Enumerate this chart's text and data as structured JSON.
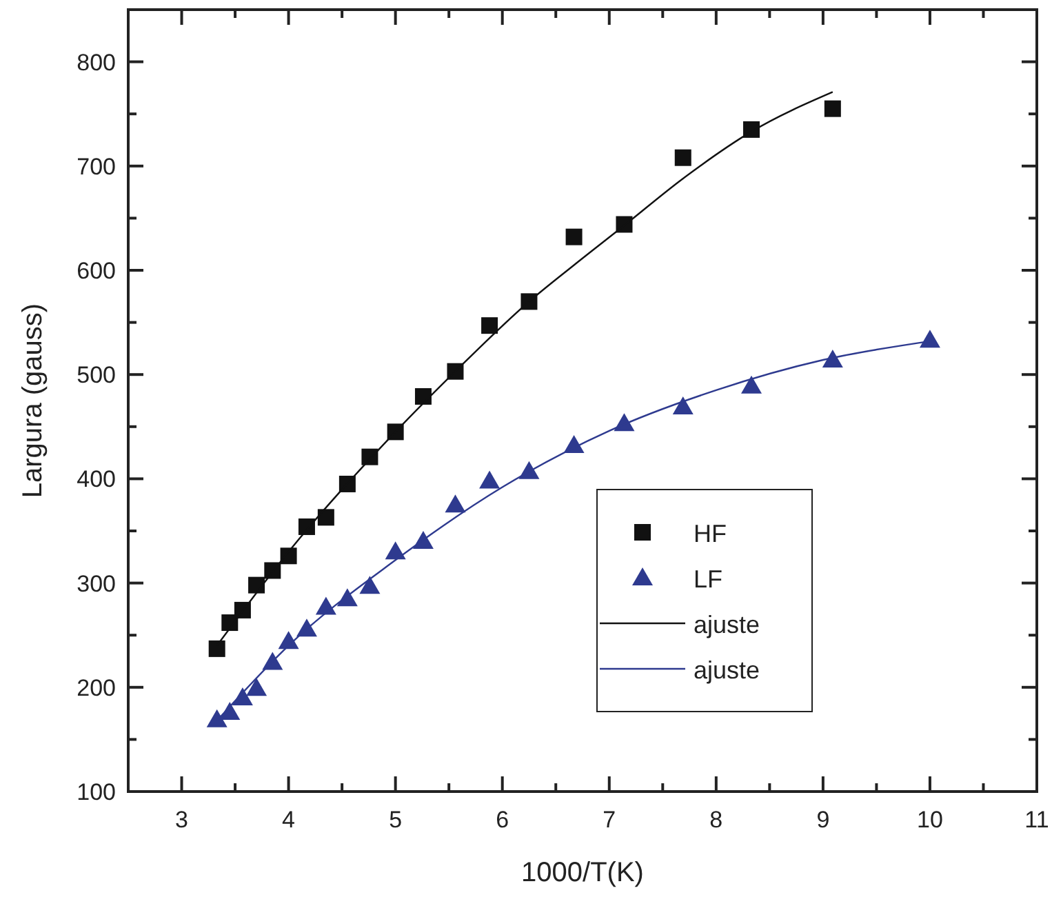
{
  "chart_data": {
    "type": "scatter",
    "xlabel": "1000/T(K)",
    "ylabel": "Largura (gauss)",
    "xlim": [
      2.5,
      11
    ],
    "ylim": [
      100,
      850
    ],
    "xticks": [
      {
        "value": 2.5,
        "label": null
      },
      3,
      {
        "value": 3.5,
        "label": null
      },
      4,
      {
        "value": 4.5,
        "label": null
      },
      5,
      {
        "value": 5.5,
        "label": null
      },
      6,
      {
        "value": 6.5,
        "label": null
      },
      7,
      {
        "value": 7.5,
        "label": null
      },
      8,
      {
        "value": 8.5,
        "label": null
      },
      9,
      {
        "value": 9.5,
        "label": null
      },
      10,
      {
        "value": 10.5,
        "label": null
      },
      11
    ],
    "yticks": [
      100,
      {
        "value": 150,
        "label": null
      },
      200,
      {
        "value": 250,
        "label": null
      },
      300,
      {
        "value": 350,
        "label": null
      },
      400,
      {
        "value": 450,
        "label": null
      },
      500,
      {
        "value": 550,
        "label": null
      },
      600,
      {
        "value": 650,
        "label": null
      },
      700,
      {
        "value": 750,
        "label": null
      },
      800
    ],
    "legend": "right",
    "grid": false,
    "series": [
      {
        "name": "HF",
        "marker": "square",
        "color": "#111111",
        "x": [
          3.33,
          3.45,
          3.57,
          3.7,
          3.85,
          4,
          4.17,
          4.35,
          4.55,
          4.76,
          5,
          5.26,
          5.56,
          5.88,
          6.25,
          6.67,
          7.14,
          7.69,
          8.33,
          9.09
        ],
        "values": [
          237,
          262,
          274,
          298,
          312,
          326,
          354,
          363,
          395,
          421,
          445,
          479,
          503,
          547,
          570,
          632,
          644,
          708,
          735,
          755
        ]
      },
      {
        "name": "LF",
        "marker": "triangle",
        "color": "#2e3a8f",
        "x": [
          3.33,
          3.45,
          3.57,
          3.7,
          3.85,
          4,
          4.17,
          4.35,
          4.55,
          4.76,
          5,
          5.26,
          5.56,
          5.88,
          6.25,
          6.67,
          7.14,
          7.69,
          8.33,
          9.09,
          10
        ],
        "values": [
          169,
          176,
          190,
          199,
          224,
          244,
          256,
          277,
          285,
          297,
          330,
          340,
          375,
          398,
          407,
          432,
          453,
          469,
          489,
          514,
          533
        ]
      },
      {
        "name": "ajuste",
        "type": "line",
        "marker": "none",
        "line_style": "solid",
        "color": "#111111",
        "x": [
          3.33,
          4,
          5,
          5.56,
          6.25,
          6.67,
          7.14,
          7.69,
          8.33,
          9.09
        ],
        "values": [
          240,
          330,
          445,
          503,
          570,
          605,
          643,
          688,
          733,
          771
        ]
      },
      {
        "name": "ajuste",
        "type": "line",
        "marker": "none",
        "line_style": "solid",
        "color": "#2e3a8f",
        "x": [
          3.33,
          4,
          5,
          6,
          7,
          8,
          9,
          10
        ],
        "values": [
          168,
          240,
          322,
          392,
          446,
          485,
          514,
          532
        ]
      }
    ]
  }
}
